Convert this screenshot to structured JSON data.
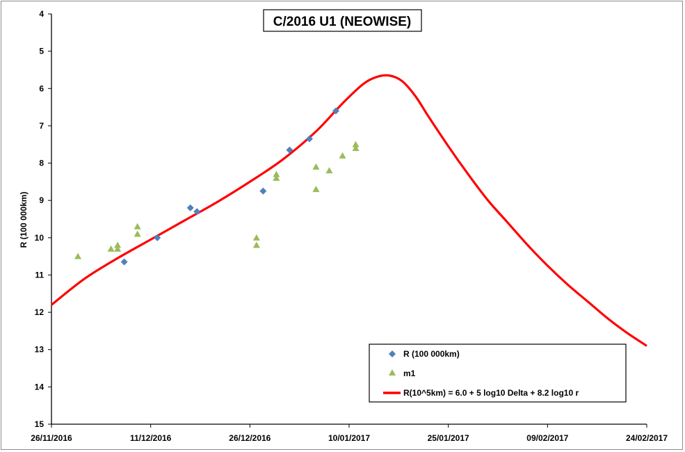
{
  "chart_data": {
    "type": "scatter",
    "title": "C/2016 U1 (NEOWISE)",
    "xlabel": "",
    "ylabel": "R (100 000km)",
    "x_ticks": [
      "26/11/2016",
      "11/12/2016",
      "26/12/2016",
      "10/01/2017",
      "25/01/2017",
      "09/02/2017",
      "24/02/2017"
    ],
    "xlim": [
      "2016-11-26",
      "2017-02-24"
    ],
    "ylim": [
      4,
      15
    ],
    "y_reversed": true,
    "y_ticks": [
      4,
      5,
      6,
      7,
      8,
      9,
      10,
      11,
      12,
      13,
      14,
      15
    ],
    "grid": false,
    "legend_position": "bottom-right",
    "series": [
      {
        "name": "R (100 000km)",
        "kind": "scatter",
        "marker": "diamond",
        "color": "#4f81bd",
        "points": [
          {
            "x": "2016-12-07",
            "y": 10.65
          },
          {
            "x": "2016-12-12",
            "y": 10.0
          },
          {
            "x": "2016-12-17",
            "y": 9.2
          },
          {
            "x": "2016-12-18",
            "y": 9.3
          },
          {
            "x": "2016-12-28",
            "y": 8.75
          },
          {
            "x": "2017-01-01",
            "y": 7.65
          },
          {
            "x": "2017-01-04",
            "y": 7.35
          },
          {
            "x": "2017-01-08",
            "y": 6.6
          }
        ]
      },
      {
        "name": "m1",
        "kind": "scatter",
        "marker": "triangle",
        "color": "#9bbb59",
        "points": [
          {
            "x": "2016-11-30",
            "y": 10.5
          },
          {
            "x": "2016-12-05",
            "y": 10.3
          },
          {
            "x": "2016-12-06",
            "y": 10.2
          },
          {
            "x": "2016-12-06",
            "y": 10.3
          },
          {
            "x": "2016-12-09",
            "y": 9.7
          },
          {
            "x": "2016-12-09",
            "y": 9.9
          },
          {
            "x": "2016-12-27",
            "y": 10.0
          },
          {
            "x": "2016-12-27",
            "y": 10.2
          },
          {
            "x": "2016-12-30",
            "y": 8.3
          },
          {
            "x": "2016-12-30",
            "y": 8.4
          },
          {
            "x": "2017-01-05",
            "y": 8.1
          },
          {
            "x": "2017-01-05",
            "y": 8.7
          },
          {
            "x": "2017-01-07",
            "y": 8.2
          },
          {
            "x": "2017-01-09",
            "y": 7.8
          },
          {
            "x": "2017-01-11",
            "y": 7.5
          },
          {
            "x": "2017-01-11",
            "y": 7.6
          }
        ]
      },
      {
        "name": "R(10^5km) = 6.0 + 5 log10 Delta + 8.2  log10 r",
        "kind": "line",
        "color": "#ff0000",
        "points": [
          {
            "x": "2016-11-26",
            "y": 11.8
          },
          {
            "x": "2016-12-01",
            "y": 11.1
          },
          {
            "x": "2016-12-06",
            "y": 10.55
          },
          {
            "x": "2016-12-11",
            "y": 10.05
          },
          {
            "x": "2016-12-16",
            "y": 9.55
          },
          {
            "x": "2016-12-21",
            "y": 9.05
          },
          {
            "x": "2016-12-26",
            "y": 8.5
          },
          {
            "x": "2016-12-31",
            "y": 7.9
          },
          {
            "x": "2017-01-05",
            "y": 7.15
          },
          {
            "x": "2017-01-09",
            "y": 6.4
          },
          {
            "x": "2017-01-12",
            "y": 5.9
          },
          {
            "x": "2017-01-14",
            "y": 5.7
          },
          {
            "x": "2017-01-16",
            "y": 5.65
          },
          {
            "x": "2017-01-18",
            "y": 5.8
          },
          {
            "x": "2017-01-20",
            "y": 6.2
          },
          {
            "x": "2017-01-22",
            "y": 6.75
          },
          {
            "x": "2017-01-25",
            "y": 7.55
          },
          {
            "x": "2017-01-28",
            "y": 8.3
          },
          {
            "x": "2017-01-31",
            "y": 9.0
          },
          {
            "x": "2017-02-03",
            "y": 9.6
          },
          {
            "x": "2017-02-06",
            "y": 10.2
          },
          {
            "x": "2017-02-09",
            "y": 10.75
          },
          {
            "x": "2017-02-12",
            "y": 11.25
          },
          {
            "x": "2017-02-15",
            "y": 11.7
          },
          {
            "x": "2017-02-18",
            "y": 12.15
          },
          {
            "x": "2017-02-21",
            "y": 12.55
          },
          {
            "x": "2017-02-24",
            "y": 12.9
          }
        ]
      }
    ]
  }
}
